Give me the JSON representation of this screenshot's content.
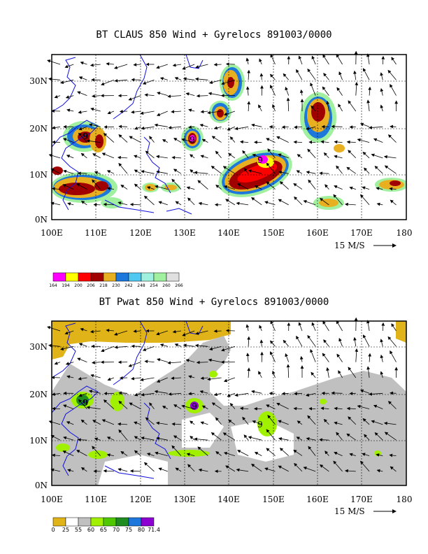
{
  "top": {
    "title": "BT CLAUS 850 Wind + Gyrelocs 891003/0000",
    "legend": [
      "164",
      "194",
      "200",
      "206",
      "218",
      "230",
      "242",
      "248",
      "254",
      "260",
      "266"
    ],
    "legend_colors": [
      "#ff00ff",
      "#ffff00",
      "#ff0000",
      "#a00000",
      "#e8b020",
      "#1e78dc",
      "#50c8f0",
      "#a0f0e0",
      "#a0f0a0",
      "#e0e0e0"
    ]
  },
  "bottom": {
    "title": "BT Pwat 850 Wind + Gyrelocs 891003/0000",
    "legend": [
      "0",
      "25",
      "55",
      "60",
      "65",
      "70",
      "75",
      "80",
      "71.4"
    ],
    "legend_colors": [
      "#e0b418",
      "#ffffff",
      "#c0c0c0",
      "#a0f000",
      "#50c800",
      "#1e8c1e",
      "#1e78dc",
      "#8c00d2"
    ]
  },
  "axes": {
    "x_ticks": [
      "100E",
      "110E",
      "120E",
      "130E",
      "140E",
      "150E",
      "160E",
      "170E",
      "180"
    ],
    "y_ticks": [
      "0N",
      "10N",
      "20N",
      "30N"
    ],
    "scale_label": "15 M/S"
  },
  "storm_symbol": "9",
  "colors": {
    "coast": "#1010e0",
    "grid": "#000000"
  }
}
